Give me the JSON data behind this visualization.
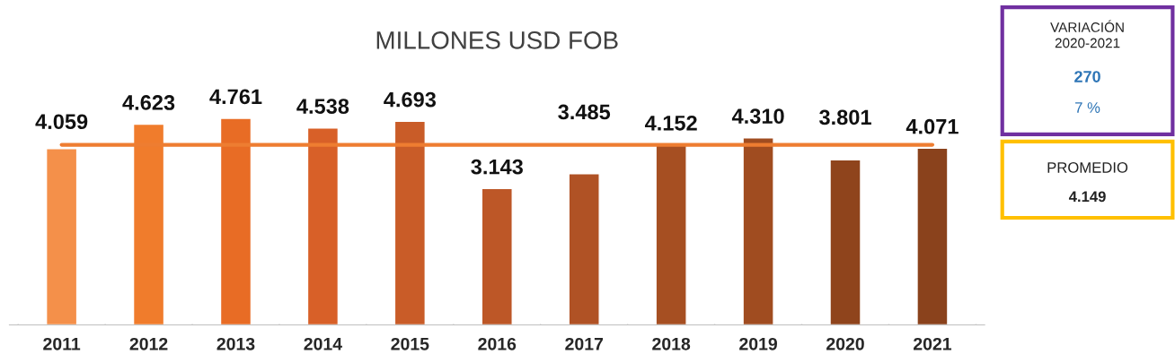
{
  "chart_data": {
    "type": "bar",
    "title": "MILLONES USD FOB",
    "categories": [
      "2011",
      "2012",
      "2013",
      "2014",
      "2015",
      "2016",
      "2017",
      "2018",
      "2019",
      "2020",
      "2021"
    ],
    "values": [
      4059,
      4623,
      4761,
      4538,
      4693,
      3143,
      3485,
      4152,
      4310,
      3801,
      4071
    ],
    "value_labels": [
      "4.059",
      "4.623",
      "4.761",
      "4.538",
      "4.693",
      "3.143",
      "3.485",
      "4.152",
      "4.310",
      "3.801",
      "4.071"
    ],
    "colors": [
      "#f4904a",
      "#f07c2c",
      "#e86c25",
      "#d86028",
      "#c95c28",
      "#bd5727",
      "#b05225",
      "#a64f22",
      "#a04c20",
      "#8f441c",
      "#8a421c"
    ],
    "ref_lines": [
      {
        "axis": "y",
        "value": 4149,
        "color": "#ee7d31"
      }
    ],
    "annotations": [
      "VARIACIÓN\n2020-2021",
      "270",
      "7 %",
      "PROMEDIO",
      "4.149"
    ],
    "grid": false,
    "legend": false
  }
}
